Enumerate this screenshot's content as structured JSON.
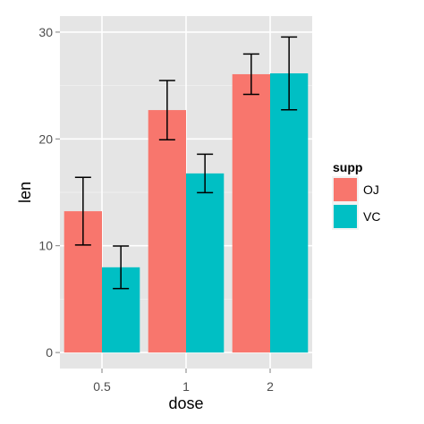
{
  "chart_data": {
    "type": "bar",
    "xlabel": "dose",
    "ylabel": "len",
    "categories": [
      "0.5",
      "1",
      "2"
    ],
    "ylim": [
      -1.5,
      31.5
    ],
    "yticks": [
      0,
      10,
      20,
      30
    ],
    "grid": true,
    "legend": {
      "title": "supp",
      "placement": "right"
    },
    "series": [
      {
        "name": "OJ",
        "color": "#F8766D",
        "values": [
          13.23,
          22.7,
          26.06
        ],
        "lower": [
          10.07,
          19.92,
          24.17
        ],
        "upper": [
          16.4,
          25.47,
          27.95
        ]
      },
      {
        "name": "VC",
        "color": "#00BFC4",
        "values": [
          7.98,
          16.77,
          26.14
        ],
        "lower": [
          5.99,
          14.97,
          22.73
        ],
        "upper": [
          9.97,
          18.57,
          29.54
        ]
      }
    ],
    "panel_background": "#E5E5E5",
    "grid_color": "#FFFFFF"
  }
}
